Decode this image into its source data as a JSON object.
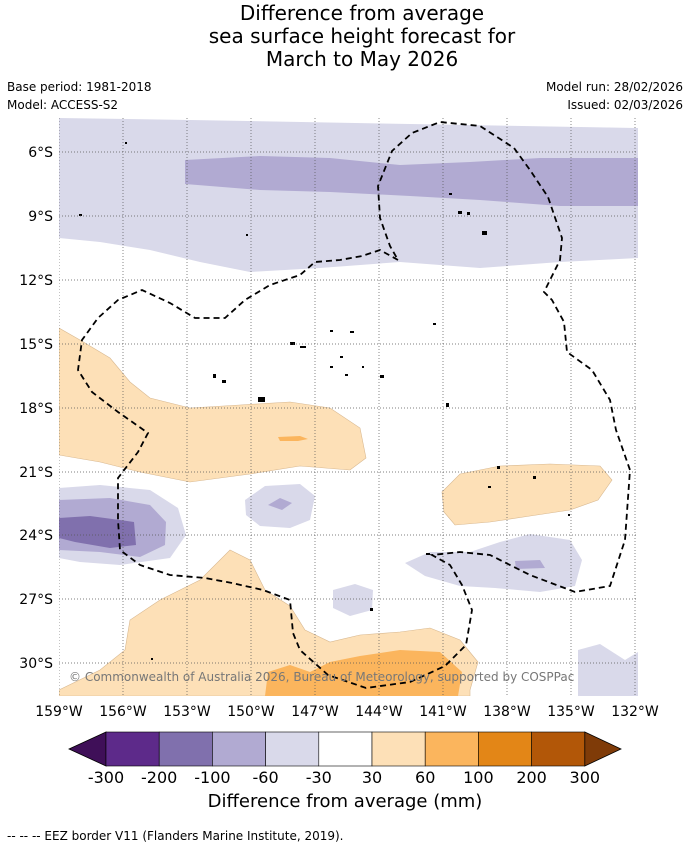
{
  "title": {
    "line1": "Difference from average",
    "line2": "sea surface height forecast for",
    "line3": "March to May 2026"
  },
  "meta": {
    "base_period": "Base period: 1981-2018",
    "model": "Model: ACCESS-S2",
    "model_run": "Model run: 28/02/2026",
    "issued": "Issued: 02/03/2026"
  },
  "map": {
    "lat_labels": [
      "6°S",
      "9°S",
      "12°S",
      "15°S",
      "18°S",
      "21°S",
      "24°S",
      "27°S",
      "30°S"
    ],
    "lon_labels": [
      "159°W",
      "156°W",
      "153°W",
      "150°W",
      "147°W",
      "144°W",
      "141°W",
      "138°W",
      "135°W",
      "132°W"
    ],
    "copyright": "© Commonwealth of Australia 2026, Bureau of Meteorology, supported by COSPPac"
  },
  "colorbar": {
    "ticks": [
      "-300",
      "-200",
      "-100",
      "-60",
      "-30",
      "30",
      "60",
      "100",
      "200",
      "300"
    ],
    "colors": [
      "#3f0f58",
      "#5d2a8a",
      "#8070ad",
      "#b1aad2",
      "#d9d9ea",
      "#ffffff",
      "#fde0b7",
      "#fbb55d",
      "#e38617",
      "#b25708",
      "#7f3b08"
    ],
    "label": "Difference from average (mm)"
  },
  "legend": {
    "eez": "--  --  -- EEZ border V11 (Flanders Marine Institute, 2019)."
  }
}
